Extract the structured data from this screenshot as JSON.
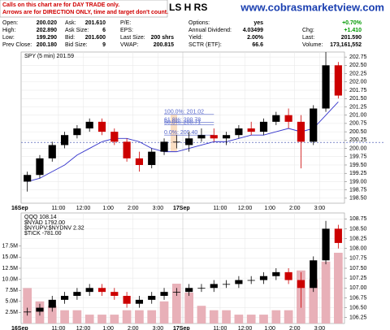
{
  "header": {
    "notice": [
      "Calls on this chart are for DAY TRADE only.",
      "Arrows are for DIRECTION ONLY, time and target don't count."
    ],
    "partial_title": "LS H RS",
    "site": "www.cobrasmarketview.com",
    "quote": [
      [
        {
          "label": "Open:",
          "value": "200.020"
        },
        {
          "label": "Ask:",
          "value": "201.610"
        },
        {
          "label": "P/E:"
        },
        {
          "label": "Options:",
          "value": "yes"
        },
        {
          "value": "+0.70%",
          "color": "#009900"
        }
      ],
      [
        {
          "label": "High:",
          "value": "202.890"
        },
        {
          "label": "Ask Size:",
          "value": "6"
        },
        {
          "label": "EPS:"
        },
        {
          "label": "Annual Dividend:",
          "value": "4.03499"
        },
        {
          "label": "Chg:",
          "value": "+1.410",
          "color": "#009900"
        }
      ],
      [
        {
          "label": "Low:",
          "value": "199.290"
        },
        {
          "label": "Bid:",
          "value": "201.600"
        },
        {
          "label": "Last Size:",
          "value": "200 shrs"
        },
        {
          "label": "Yield:",
          "value": "2.00%"
        },
        {
          "label": "Last:",
          "value": "201.590"
        }
      ],
      [
        {
          "label": "Prev Close:",
          "value": "200.180"
        },
        {
          "label": "Bid Size:",
          "value": "9"
        },
        {
          "label": "VWAP:",
          "value": "200.815"
        },
        {
          "label": "SCTR (ETF):",
          "value": "66.6"
        },
        {
          "label": "Volume:",
          "value": "173,161,552"
        }
      ]
    ]
  },
  "chart_data": [
    {
      "type": "candlestick",
      "title": "SPY (5 min) 201.59",
      "categories": [
        "16Sep",
        null,
        null,
        "11:00",
        null,
        "12:00",
        null,
        "1:00",
        null,
        "2:00",
        null,
        "3:00",
        null,
        "17Sep",
        null,
        null,
        "11:00",
        null,
        "12:00",
        null,
        "1:00",
        null,
        "2:00",
        null,
        "3:00",
        null
      ],
      "open": [
        199.0,
        199.2,
        199.7,
        200.1,
        200.4,
        200.6,
        200.8,
        200.5,
        200.2,
        199.7,
        199.5,
        199.9,
        200.2,
        200.1,
        200.3,
        200.4,
        200.3,
        200.4,
        200.6,
        200.5,
        200.8,
        201.0,
        200.8,
        200.2,
        201.2,
        202.5
      ],
      "high": [
        199.3,
        199.8,
        200.2,
        200.5,
        200.7,
        200.9,
        200.9,
        200.6,
        200.3,
        199.9,
        200.0,
        200.3,
        200.4,
        200.5,
        200.6,
        200.6,
        200.5,
        200.7,
        200.8,
        200.9,
        201.1,
        201.2,
        201.0,
        201.3,
        202.9,
        202.6
      ],
      "low": [
        198.7,
        199.1,
        199.6,
        200.0,
        200.3,
        200.5,
        200.4,
        200.1,
        199.6,
        199.3,
        199.4,
        199.8,
        200.0,
        199.9,
        200.2,
        200.2,
        200.1,
        200.3,
        200.4,
        200.4,
        200.7,
        200.6,
        199.4,
        200.1,
        201.1,
        201.5
      ],
      "close": [
        199.2,
        199.7,
        200.1,
        200.4,
        200.6,
        200.8,
        200.5,
        200.2,
        199.7,
        199.5,
        199.9,
        200.2,
        200.2,
        200.3,
        200.4,
        200.3,
        200.4,
        200.6,
        200.5,
        200.8,
        201.0,
        200.8,
        200.2,
        201.2,
        202.5,
        201.59
      ],
      "up_color": "#000000",
      "down_color": "#cc0000",
      "ma": {
        "color": "#3333cc",
        "values": [
          199.0,
          199.1,
          199.3,
          199.5,
          199.8,
          200.0,
          200.2,
          200.3,
          200.3,
          200.2,
          200.0,
          199.9,
          199.9,
          200.0,
          200.1,
          200.2,
          200.2,
          200.3,
          200.4,
          200.4,
          200.5,
          200.6,
          200.5,
          200.6,
          201.0,
          201.4
        ]
      },
      "reference_line": 200.18,
      "fib_levels": [
        {
          "label": "100.0%: 201.02",
          "value": 201.02
        },
        {
          "label": "61.8%: 200.78",
          "value": 200.78
        },
        {
          "label": "50.0%: 200.71",
          "value": 200.71
        },
        {
          "label": "0.0%: 200.40",
          "value": 200.4
        }
      ],
      "ylim": [
        198.35,
        202.9
      ],
      "yticks": [
        {
          "value": 198.5,
          "label": "198.50"
        },
        198.75,
        {
          "value": 199,
          "label": "199.00"
        },
        199.25,
        {
          "value": 199.5,
          "label": "199.50"
        },
        199.75,
        {
          "value": 200,
          "label": "200.00"
        },
        200.25,
        {
          "value": 200.5,
          "label": "200.50"
        },
        200.75,
        {
          "value": 201,
          "label": "201.00"
        },
        201.25,
        {
          "value": 201.5,
          "label": "201.50"
        },
        201.75,
        {
          "value": 202,
          "label": "202.00"
        },
        202.25,
        {
          "value": 202.5,
          "label": "202.50"
        },
        202.75
      ],
      "grid": true
    },
    {
      "type": "candlestick",
      "title": "QQQ 108.14",
      "annotations": [
        "$NYAD 1792.00",
        "$NYUPV:$NYDNV 2.32",
        "$TICK -781.00"
      ],
      "categories": [
        "16Sep",
        null,
        null,
        "11:00",
        null,
        "12:00",
        null,
        "1:00",
        null,
        "2:00",
        null,
        "3:00",
        null,
        "17Sep",
        null,
        null,
        "11:00",
        null,
        "12:00",
        null,
        "1:00",
        null,
        "2:00",
        null,
        "3:00",
        null
      ],
      "open": [
        106.4,
        106.4,
        106.5,
        106.7,
        106.8,
        106.9,
        107.0,
        106.9,
        106.8,
        106.6,
        106.7,
        106.8,
        106.9,
        106.9,
        107.0,
        107.0,
        107.1,
        107.1,
        107.2,
        107.2,
        107.3,
        107.4,
        107.2,
        107.0,
        107.7,
        108.5
      ],
      "high": [
        106.5,
        106.6,
        106.8,
        106.9,
        107.0,
        107.1,
        107.1,
        107.0,
        106.9,
        106.8,
        106.9,
        107.0,
        107.0,
        107.1,
        107.1,
        107.2,
        107.2,
        107.3,
        107.3,
        107.4,
        107.5,
        107.5,
        107.4,
        107.8,
        108.7,
        108.6
      ],
      "low": [
        106.3,
        106.3,
        106.4,
        106.6,
        106.7,
        106.8,
        106.8,
        106.7,
        106.5,
        106.5,
        106.6,
        106.7,
        106.8,
        106.8,
        106.9,
        106.9,
        107.0,
        107.0,
        107.1,
        107.1,
        107.2,
        107.1,
        106.5,
        106.9,
        107.6,
        108.0
      ],
      "close": [
        106.4,
        106.5,
        106.7,
        106.8,
        106.9,
        107.0,
        106.9,
        106.8,
        106.6,
        106.7,
        106.8,
        106.9,
        106.9,
        107.0,
        107.0,
        107.1,
        107.1,
        107.2,
        107.2,
        107.3,
        107.4,
        107.2,
        107.0,
        107.7,
        108.5,
        108.14
      ],
      "up_color": "#000000",
      "down_color": "#cc0000",
      "volume": {
        "color": "#e8b0b8",
        "axis": "y2",
        "values": [
          8000000,
          5000000,
          4000000,
          3000000,
          3000000,
          2000000,
          2000000,
          2000000,
          3000000,
          3000000,
          3000000,
          5000000,
          9000000,
          7000000,
          4000000,
          3000000,
          3000000,
          2000000,
          2000000,
          2000000,
          3000000,
          3000000,
          12000000,
          10000000,
          14000000,
          16000000
        ]
      },
      "ylim": [
        106.1,
        108.9
      ],
      "yticks": [
        106.25,
        {
          "value": 106.5,
          "label": "106.50"
        },
        106.75,
        {
          "value": 107,
          "label": "107.00"
        },
        107.25,
        {
          "value": 107.5,
          "label": "107.50"
        },
        107.75,
        {
          "value": 108,
          "label": "108.00"
        },
        108.25,
        {
          "value": 108.5,
          "label": "108.50"
        },
        108.75
      ],
      "y2lim": [
        0,
        25000000
      ],
      "y2ticks": [
        {
          "value": 2500000,
          "label": "2.5M"
        },
        {
          "value": 5000000,
          "label": "5.0M"
        },
        {
          "value": 7500000,
          "label": "7.5M"
        },
        {
          "value": 10000000,
          "label": "10.0M"
        },
        {
          "value": 12500000,
          "label": "12.5M"
        },
        {
          "value": 15000000,
          "label": "15.0M"
        },
        {
          "value": 17500000,
          "label": "17.5M"
        }
      ],
      "grid": true
    }
  ]
}
